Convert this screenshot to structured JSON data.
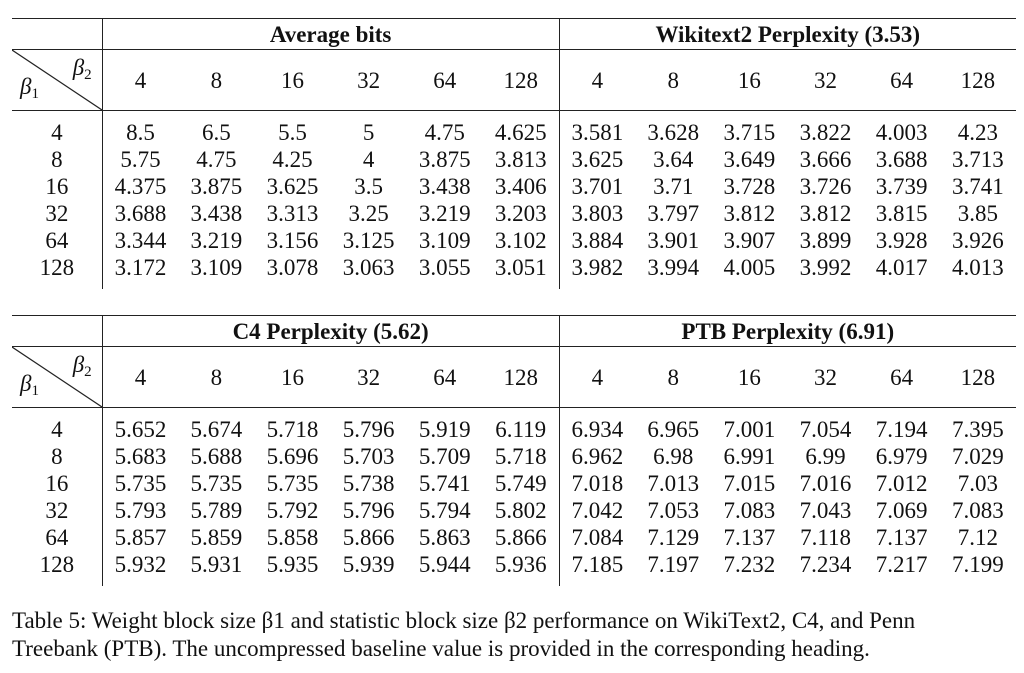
{
  "beta1_label": "β",
  "beta2_label": "β",
  "beta1_sub": "1",
  "beta2_sub": "2",
  "tables": [
    {
      "left_title": "Average bits",
      "right_title": "Wikitext2 Perplexity (3.53)",
      "cols": [
        "4",
        "8",
        "16",
        "32",
        "64",
        "128"
      ],
      "rows": [
        {
          "b1": "4",
          "left": [
            "8.5",
            "6.5",
            "5.5",
            "5",
            "4.75",
            "4.625"
          ],
          "right": [
            "3.581",
            "3.628",
            "3.715",
            "3.822",
            "4.003",
            "4.23"
          ]
        },
        {
          "b1": "8",
          "left": [
            "5.75",
            "4.75",
            "4.25",
            "4",
            "3.875",
            "3.813"
          ],
          "right": [
            "3.625",
            "3.64",
            "3.649",
            "3.666",
            "3.688",
            "3.713"
          ]
        },
        {
          "b1": "16",
          "left": [
            "4.375",
            "3.875",
            "3.625",
            "3.5",
            "3.438",
            "3.406"
          ],
          "right": [
            "3.701",
            "3.71",
            "3.728",
            "3.726",
            "3.739",
            "3.741"
          ]
        },
        {
          "b1": "32",
          "left": [
            "3.688",
            "3.438",
            "3.313",
            "3.25",
            "3.219",
            "3.203"
          ],
          "right": [
            "3.803",
            "3.797",
            "3.812",
            "3.812",
            "3.815",
            "3.85"
          ]
        },
        {
          "b1": "64",
          "left": [
            "3.344",
            "3.219",
            "3.156",
            "3.125",
            "3.109",
            "3.102"
          ],
          "right": [
            "3.884",
            "3.901",
            "3.907",
            "3.899",
            "3.928",
            "3.926"
          ]
        },
        {
          "b1": "128",
          "left": [
            "3.172",
            "3.109",
            "3.078",
            "3.063",
            "3.055",
            "3.051"
          ],
          "right": [
            "3.982",
            "3.994",
            "4.005",
            "3.992",
            "4.017",
            "4.013"
          ]
        }
      ]
    },
    {
      "left_title": "C4 Perplexity (5.62)",
      "right_title": "PTB Perplexity (6.91)",
      "cols": [
        "4",
        "8",
        "16",
        "32",
        "64",
        "128"
      ],
      "rows": [
        {
          "b1": "4",
          "left": [
            "5.652",
            "5.674",
            "5.718",
            "5.796",
            "5.919",
            "6.119"
          ],
          "right": [
            "6.934",
            "6.965",
            "7.001",
            "7.054",
            "7.194",
            "7.395"
          ]
        },
        {
          "b1": "8",
          "left": [
            "5.683",
            "5.688",
            "5.696",
            "5.703",
            "5.709",
            "5.718"
          ],
          "right": [
            "6.962",
            "6.98",
            "6.991",
            "6.99",
            "6.979",
            "7.029"
          ]
        },
        {
          "b1": "16",
          "left": [
            "5.735",
            "5.735",
            "5.735",
            "5.738",
            "5.741",
            "5.749"
          ],
          "right": [
            "7.018",
            "7.013",
            "7.015",
            "7.016",
            "7.012",
            "7.03"
          ]
        },
        {
          "b1": "32",
          "left": [
            "5.793",
            "5.789",
            "5.792",
            "5.796",
            "5.794",
            "5.802"
          ],
          "right": [
            "7.042",
            "7.053",
            "7.083",
            "7.043",
            "7.069",
            "7.083"
          ]
        },
        {
          "b1": "64",
          "left": [
            "5.857",
            "5.859",
            "5.858",
            "5.866",
            "5.863",
            "5.866"
          ],
          "right": [
            "7.084",
            "7.129",
            "7.137",
            "7.118",
            "7.137",
            "7.12"
          ]
        },
        {
          "b1": "128",
          "left": [
            "5.932",
            "5.931",
            "5.935",
            "5.939",
            "5.944",
            "5.936"
          ],
          "right": [
            "7.185",
            "7.197",
            "7.232",
            "7.234",
            "7.217",
            "7.199"
          ]
        }
      ]
    }
  ],
  "caption": {
    "line1": "Table 5: Weight block size β1 and statistic block size β2 performance on WikiText2, C4, and Penn",
    "line2": "Treebank (PTB). The uncompressed baseline value is provided in the corresponding heading."
  }
}
